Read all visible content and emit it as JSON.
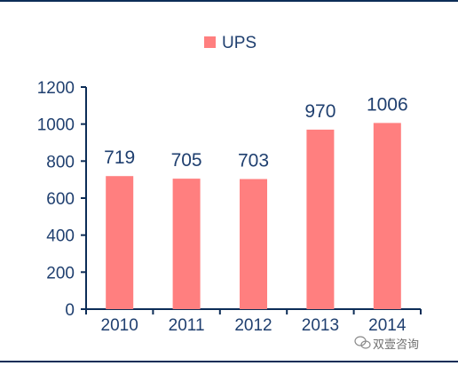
{
  "chart_data": {
    "type": "bar",
    "categories": [
      "2010",
      "2011",
      "2012",
      "2013",
      "2014"
    ],
    "series": [
      {
        "name": "UPS",
        "values": [
          719,
          705,
          703,
          970,
          1006
        ]
      }
    ],
    "data_labels": [
      "719",
      "705",
      "703",
      "970",
      "1006"
    ],
    "y_ticks": [
      "0",
      "200",
      "400",
      "600",
      "800",
      "1000",
      "1200"
    ],
    "ylim": [
      0,
      1200
    ],
    "legend_position": "top-center",
    "grid": false,
    "bar_color": "#ff7f7f",
    "axis_color": "#0c2d57",
    "text_color": "#1f3f6f"
  },
  "watermark": {
    "text": "双壹咨询",
    "icon": "wechat-icon"
  }
}
